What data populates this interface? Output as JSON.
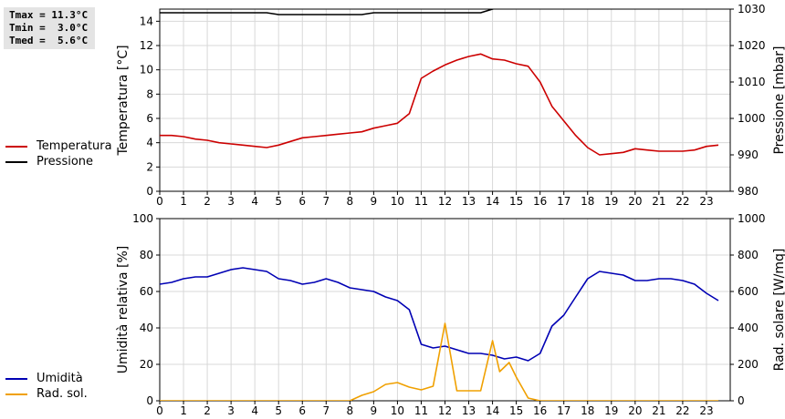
{
  "stats": {
    "tmax": "Tmax = 11.3°C",
    "tmin": "Tmin =  3.0°C",
    "tmed": "Tmed =  5.6°C"
  },
  "legend_top": {
    "temp": "Temperatura",
    "press": "Pressione"
  },
  "legend_bottom": {
    "hum": "Umidità",
    "rad": "Rad. sol."
  },
  "colors": {
    "temp": "#cc0000",
    "press": "#000000",
    "hum": "#0000b4",
    "rad": "#f0a000",
    "grid": "#d8d8d8"
  },
  "chart_data": [
    {
      "type": "line",
      "x_ticks": [
        "0",
        "1",
        "2",
        "3",
        "4",
        "5",
        "6",
        "7",
        "8",
        "9",
        "10",
        "11",
        "12",
        "13",
        "14",
        "15",
        "16",
        "17",
        "18",
        "19",
        "20",
        "21",
        "22",
        "23"
      ],
      "xlim": [
        0,
        24
      ],
      "ylabel_left": "Temperatura [°C]",
      "ylim_left": [
        0,
        15
      ],
      "yticks_left": [
        "0",
        "2",
        "4",
        "6",
        "8",
        "10",
        "12",
        "14"
      ],
      "ylabel_right": "Pressione [mbar]",
      "ylim_right": [
        980,
        1030
      ],
      "yticks_right": [
        "980",
        "990",
        "1000",
        "1010",
        "1020",
        "1030"
      ],
      "grid": true,
      "series": [
        {
          "name": "Temperatura",
          "axis": "left",
          "x": [
            0,
            0.5,
            1,
            1.5,
            2,
            2.5,
            3,
            3.5,
            4,
            4.5,
            5,
            5.5,
            6,
            6.5,
            7,
            7.5,
            8,
            8.5,
            9,
            9.5,
            10,
            10.5,
            11,
            11.5,
            12,
            12.5,
            13,
            13.5,
            14,
            14.5,
            15,
            15.5,
            16,
            16.5,
            17,
            17.5,
            18,
            18.5,
            19,
            19.5,
            20,
            20.5,
            21,
            21.5,
            22,
            22.5,
            23,
            23.5
          ],
          "y": [
            4.6,
            4.6,
            4.5,
            4.3,
            4.2,
            4.0,
            3.9,
            3.8,
            3.7,
            3.6,
            3.8,
            4.1,
            4.4,
            4.5,
            4.6,
            4.7,
            4.8,
            4.9,
            5.2,
            5.4,
            5.6,
            6.4,
            9.3,
            9.9,
            10.4,
            10.8,
            11.1,
            11.3,
            10.9,
            10.8,
            10.5,
            10.3,
            9.0,
            7.0,
            5.8,
            4.6,
            3.6,
            3.0,
            3.1,
            3.2,
            3.5,
            3.4,
            3.3,
            3.3,
            3.3,
            3.4,
            3.7,
            3.8
          ]
        },
        {
          "name": "Pressione",
          "axis": "right",
          "x": [
            0,
            4.5,
            5,
            8.5,
            9,
            13.5,
            14,
            14.3
          ],
          "y": [
            1029,
            1029,
            1028.5,
            1028.5,
            1029,
            1029,
            1030,
            1030.5
          ]
        }
      ]
    },
    {
      "type": "line",
      "x_ticks": [
        "0",
        "1",
        "2",
        "3",
        "4",
        "5",
        "6",
        "7",
        "8",
        "9",
        "10",
        "11",
        "12",
        "13",
        "14",
        "15",
        "16",
        "17",
        "18",
        "19",
        "20",
        "21",
        "22",
        "23"
      ],
      "xlim": [
        0,
        24
      ],
      "ylabel_left": "Umidità relativa [%]",
      "ylim_left": [
        0,
        100
      ],
      "yticks_left": [
        "0",
        "20",
        "40",
        "60",
        "80",
        "100"
      ],
      "ylabel_right": "Rad. solare [W/mq]",
      "ylim_right": [
        0,
        1000
      ],
      "yticks_right": [
        "0",
        "200",
        "400",
        "600",
        "800",
        "1000"
      ],
      "grid": true,
      "series": [
        {
          "name": "Umidità",
          "axis": "left",
          "x": [
            0,
            0.5,
            1,
            1.5,
            2,
            2.5,
            3,
            3.5,
            4,
            4.5,
            5,
            5.5,
            6,
            6.5,
            7,
            7.5,
            8,
            8.5,
            9,
            9.5,
            10,
            10.5,
            11,
            11.5,
            12,
            12.5,
            13,
            13.5,
            14,
            14.5,
            15,
            15.5,
            16,
            16.5,
            17,
            17.5,
            18,
            18.5,
            19,
            19.5,
            20,
            20.5,
            21,
            21.5,
            22,
            22.5,
            23,
            23.5
          ],
          "y": [
            64,
            65,
            67,
            68,
            68,
            70,
            72,
            73,
            72,
            71,
            67,
            66,
            64,
            65,
            67,
            65,
            62,
            61,
            60,
            57,
            55,
            50,
            31,
            29,
            30,
            28,
            26,
            26,
            25,
            23,
            24,
            22,
            26,
            41,
            47,
            57,
            67,
            71,
            70,
            69,
            66,
            66,
            67,
            67,
            66,
            64,
            59,
            55
          ]
        },
        {
          "name": "Rad. sol.",
          "axis": "right",
          "x": [
            0,
            0.5,
            1,
            1.5,
            2,
            2.5,
            3,
            3.5,
            4,
            4.5,
            5,
            5.5,
            6,
            6.5,
            7,
            7.5,
            8,
            8.5,
            9,
            9.5,
            10,
            10.5,
            11,
            11.5,
            12,
            12.5,
            13,
            13.5,
            14,
            14.3,
            14.7,
            15,
            15.5,
            16,
            16.5,
            17,
            17.5,
            18,
            18.5,
            19,
            19.5,
            20,
            20.5,
            21,
            21.5,
            22,
            22.5,
            23,
            23.5
          ],
          "y": [
            0,
            0,
            0,
            0,
            0,
            0,
            0,
            0,
            0,
            0,
            0,
            0,
            0,
            0,
            0,
            0,
            0,
            30,
            50,
            90,
            100,
            75,
            60,
            80,
            425,
            55,
            55,
            55,
            330,
            160,
            210,
            130,
            15,
            0,
            0,
            0,
            0,
            0,
            0,
            0,
            0,
            0,
            0,
            0,
            0,
            0,
            0,
            0,
            0
          ]
        }
      ]
    }
  ]
}
